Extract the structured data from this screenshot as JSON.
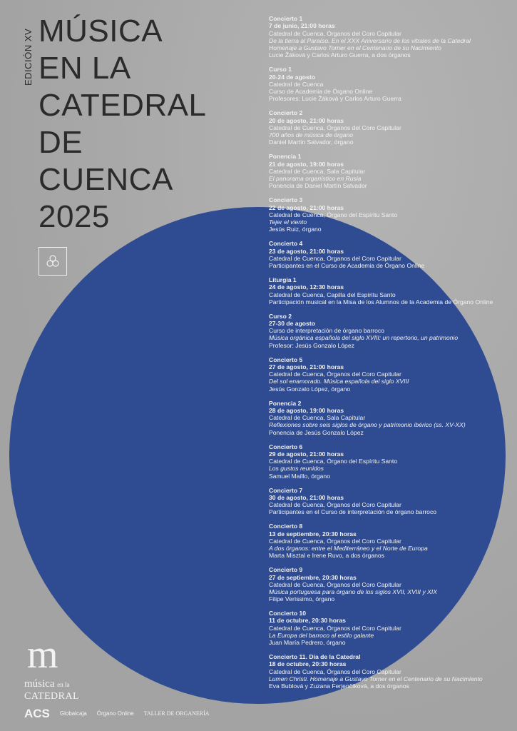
{
  "poster": {
    "edition": "EDICIÓN XV",
    "title_lines": [
      "MÚSICA",
      "EN LA",
      "CATEDRAL",
      "DE",
      "CUENCA",
      "2025"
    ],
    "seal_text": "CATEDRAL DE CUENCA",
    "colors": {
      "background": "#a8a8a8",
      "circle": "#2f4c92",
      "title": "#2b2b2b",
      "text": "#f2f2f2"
    }
  },
  "events": [
    {
      "title": "Concierto 1",
      "date": "7 de junio, 21:00 horas",
      "lines": [
        "Catedral de Cuenca, Órganos del Coro Capitular"
      ],
      "italic": [
        "De la tierra al Paraíso. En el XXX Aniversario de los vitrales de la Catedral",
        "Homenaje a Gustavo Torner en el Centenario de su Nacimiento"
      ],
      "performer": "Lucie Žáková y Carlos Arturo Guerra, a dos órganos"
    },
    {
      "title": "Curso 1",
      "date": "20-24 de agosto",
      "lines": [
        "Catedral de Cuenca",
        "Curso de Academia de Órgano Online"
      ],
      "italic": [],
      "performer": "Profesores: Lucie Žáková y Carlos Arturo Guerra"
    },
    {
      "title": "Concierto 2",
      "date": "20 de agosto, 21:00 horas",
      "lines": [
        "Catedral de Cuenca, Órganos del Coro Capitular"
      ],
      "italic": [
        "700 años de música de órgano"
      ],
      "performer": "Daniel Martín Salvador, órgano"
    },
    {
      "title": "Ponencia 1",
      "date": "21 de agosto, 19:00 horas",
      "lines": [
        "Catedral de Cuenca, Sala Capitular"
      ],
      "italic": [
        "El panorama organístico en Rusia"
      ],
      "performer": "Ponencia de Daniel Martín Salvador"
    },
    {
      "title": "Concierto 3",
      "date": "22 de agosto, 21:00 horas",
      "lines": [
        "Catedral de Cuenca, Órgano del Espíritu Santo"
      ],
      "italic": [
        "Tejer el viento"
      ],
      "performer": "Jesús Ruiz, órgano"
    },
    {
      "title": "Concierto 4",
      "date": "23 de agosto, 21:00 horas",
      "lines": [
        "Catedral de Cuenca, Órganos del Coro Capitular"
      ],
      "italic": [],
      "performer": "Participantes en el Curso de Academia de Órgano Online"
    },
    {
      "title": "Liturgia 1",
      "date": "24 de agosto, 12:30 horas",
      "lines": [
        "Catedral de Cuenca, Capilla del Espíritu Santo"
      ],
      "italic": [],
      "performer": "Participación musical en la Misa de los Alumnos de la Academia de Órgano Online"
    },
    {
      "title": "Curso 2",
      "date": "27-30 de agosto",
      "lines": [
        "Curso de interpretación de órgano barroco"
      ],
      "italic": [
        "Música orgánica española del siglo XVIII: un repertorio, un patrimonio"
      ],
      "performer": "Profesor: Jesús Gonzalo López"
    },
    {
      "title": "Concierto 5",
      "date": "27 de agosto, 21:00 horas",
      "lines": [
        "Catedral de Cuenca, Órganos del Coro Capitular"
      ],
      "italic": [
        "Del sol enamorado. Música española del siglo XVIII"
      ],
      "performer": "Jesús Gonzalo López, órgano"
    },
    {
      "title": "Ponencia 2",
      "date": "28 de agosto, 19:00 horas",
      "lines": [
        "Catedral de Cuenca, Sala Capitular"
      ],
      "italic": [
        "Reflexiones sobre seis siglos de órgano y patrimonio ibérico (ss. XV-XX)"
      ],
      "performer": "Ponencia de Jesús Gonzalo López"
    },
    {
      "title": "Concierto 6",
      "date": "29 de agosto, 21:00 horas",
      "lines": [
        "Catedral de Cuenca, Órgano del Espíritu Santo"
      ],
      "italic": [
        "Los gustos reunidos"
      ],
      "performer": "Samuel Maíllo, órgano"
    },
    {
      "title": "Concierto 7",
      "date": "30 de agosto, 21:00 horas",
      "lines": [
        "Catedral de Cuenca, Órganos del Coro Capitular"
      ],
      "italic": [],
      "performer": "Participantes en el Curso de interpretación de órgano barroco"
    },
    {
      "title": "Concierto 8",
      "date": "13 de septiembre, 20:30 horas",
      "lines": [
        "Catedral de Cuenca, Órganos del Coro Capitular"
      ],
      "italic": [
        "A dos órganos: entre el Mediterráneo y el Norte de Europa"
      ],
      "performer": "Marta Misztal e Irene Ruvo, a dos órganos"
    },
    {
      "title": "Concierto 9",
      "date": "27 de septiembre, 20:30 horas",
      "lines": [
        "Catedral de Cuenca, Órganos del Coro Capitular"
      ],
      "italic": [
        "Música portuguesa para órgano de los siglos XVII, XVIII y XIX"
      ],
      "performer": "Filipe Veríssimo, órgano"
    },
    {
      "title": "Concierto 10",
      "date": "11 de octubre, 20:30 horas",
      "lines": [
        "Catedral de Cuenca, Órganos del Coro Capitular"
      ],
      "italic": [
        "La Europa del barroco al estilo galante"
      ],
      "performer": "Juan María Pedrero, órgano"
    },
    {
      "title": "Concierto 11. Día de la Catedral",
      "date": "18 de octubre, 20:30 horas",
      "lines": [
        "Catedral de Cuenca, Órganos del Coro Capitular"
      ],
      "italic": [
        "Lumen Christi. Homenaje a Gustavo Torner en el Centenario de su Nacimiento"
      ],
      "performer": "Eva Bublová y Zuzana Ferjenčíková, a dos órganos"
    }
  ],
  "logo": {
    "mark": "m",
    "line1": "música",
    "line1_small": "en la",
    "line2": "CATEDRAL"
  },
  "sponsors": [
    "ACS",
    "Globalcaja",
    "Órgano Online",
    "TALLER DE ORGANERÍA"
  ]
}
